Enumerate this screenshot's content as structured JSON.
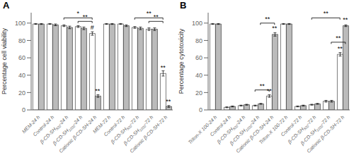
{
  "chart_data": [
    {
      "type": "bar",
      "title": "A",
      "ylabel": "Percentage cell viability",
      "categories": [
        "MEM-24 h",
        "Control-24 h",
        "β-CD-SH500-24 h",
        "β-CD-SH1000-24 h",
        "Cationic β-CD-SH-24 h",
        "MEM-72 h",
        "Control-72 h",
        "β-CD-SH500-72 h",
        "β-CD-SH1000-72 h",
        "Cationic β-CD-SH-72 h"
      ],
      "series": [
        {
          "color": "#FFFFFF",
          "values": [
            99,
            99,
            97,
            96,
            88,
            99,
            99,
            95,
            93,
            42
          ],
          "errors": [
            0.5,
            0.5,
            1.0,
            1.0,
            2.0,
            0.5,
            0.5,
            1.0,
            1.5,
            3.0
          ]
        },
        {
          "color": "#BBBBBB",
          "values": [
            99,
            98,
            95,
            94,
            16,
            99,
            97,
            94,
            93,
            4
          ],
          "errors": [
            0.5,
            1.0,
            1.5,
            1.5,
            1.5,
            0.5,
            1.0,
            1.5,
            1.5,
            1.0
          ]
        }
      ],
      "ylim": [
        0,
        112
      ],
      "yticks": [
        0,
        20,
        40,
        60,
        80,
        100
      ],
      "grid": false,
      "annotations": [
        {
          "text": "*",
          "from": "β-CD-SH500-24 h",
          "to": "Cationic β-CD-SH-24 h",
          "series": 0,
          "y": 106
        },
        {
          "text": "**",
          "from": "β-CD-SH1000-24 h",
          "to": "Cationic β-CD-SH-24 h",
          "series": 0,
          "y": 102
        },
        {
          "text": "#",
          "at": "Cationic β-CD-SH-24 h",
          "series": 0,
          "y": 90
        },
        {
          "text": "**",
          "at": "Cationic β-CD-SH-24 h",
          "series": 1,
          "y": 17
        },
        {
          "text": "**",
          "from": "β-CD-SH500-72 h",
          "to": "Cationic β-CD-SH-72 h",
          "series": 0,
          "y": 106
        },
        {
          "text": "**",
          "from": "β-CD-SH1000-72 h",
          "to": "Cationic β-CD-SH-72 h",
          "series": 0,
          "y": 102
        },
        {
          "text": "**",
          "at": "Cationic β-CD-SH-72 h",
          "series": 0,
          "y": 44
        },
        {
          "text": "**",
          "at": "Cationic β-CD-SH-72 h",
          "series": 1,
          "y": 5
        }
      ]
    },
    {
      "type": "bar",
      "title": "B",
      "ylabel": "Percentage cytotoxicity",
      "categories": [
        "Triton-X 100-24 h",
        "Control-24 h",
        "β-CD-SH500-24 h",
        "β-CD-SH1000-24 h",
        "Cationic β-CD-SH-24 h",
        "Triton-X 100-72 h",
        "Control-72 h",
        "β-CD-SH500-72 h",
        "β-CD-SH1000-72 h",
        "Cationic β-CD-SH-72 h"
      ],
      "series": [
        {
          "color": "#FFFFFF",
          "values": [
            99,
            3,
            5,
            5,
            16,
            99,
            4,
            6,
            10,
            64
          ],
          "errors": [
            0.5,
            0.5,
            0.5,
            0.5,
            1.5,
            0.5,
            0.5,
            0.5,
            1.0,
            2.0
          ]
        },
        {
          "color": "#BBBBBB",
          "values": [
            99,
            4,
            6,
            7,
            87,
            99,
            5,
            7,
            10,
            97
          ],
          "errors": [
            0.5,
            0.5,
            0.5,
            0.5,
            2.0,
            0.5,
            0.5,
            0.5,
            1.0,
            1.0
          ]
        }
      ],
      "ylim": [
        0,
        112
      ],
      "yticks": [
        0,
        20,
        40,
        60,
        80,
        100
      ],
      "grid": false,
      "annotations": [
        {
          "text": "**",
          "from": "β-CD-SH1000-24 h",
          "to": "Cationic β-CD-SH-24 h",
          "series": 1,
          "y": 100
        },
        {
          "text": "**",
          "at": "Cationic β-CD-SH-24 h",
          "series": 1,
          "y": 89
        },
        {
          "text": "**",
          "from": "β-CD-SH1000-24 h",
          "to": "Cationic β-CD-SH-24 h",
          "series": 0,
          "y": 23
        },
        {
          "text": "**",
          "at": "Cationic β-CD-SH-24 h",
          "series": 0,
          "y": 17
        },
        {
          "text": "**",
          "from": "β-CD-SH500-72 h",
          "to": "Cationic β-CD-SH-72 h",
          "series": 0,
          "y": 106
        },
        {
          "text": "**",
          "from": "β-CD-SH1000-72 h",
          "to": "Cationic β-CD-SH-72 h",
          "series": 1,
          "y": 78
        },
        {
          "text": "**",
          "at": "Cationic β-CD-SH-72 h",
          "series": 0,
          "y": 66
        },
        {
          "text": "**",
          "at": "Cationic β-CD-SH-72 h",
          "series": 1,
          "y": 99
        }
      ]
    }
  ]
}
